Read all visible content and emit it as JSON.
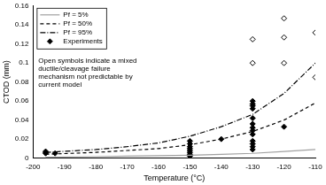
{
  "chart_data": {
    "type": "scatter",
    "x_label": "Temperature (°C)",
    "y_label": "CTOD (mm)",
    "annotation": [
      "Open symbols indicate a mixed",
      "ductile/cleavage failure",
      "mechanism not predictable by",
      "current model"
    ],
    "xlim": [
      -200,
      -110
    ],
    "xticks": [
      -200,
      -190,
      -180,
      -170,
      -160,
      -150,
      -140,
      -130,
      -120,
      -110
    ],
    "ylim": [
      0,
      0.16
    ],
    "yticks": [
      0,
      0.02,
      0.04,
      0.06,
      0.08,
      0.1,
      0.12,
      0.14,
      0.16
    ],
    "grid": false,
    "legend": "top-left",
    "series": [
      {
        "name": "Pf = 5%",
        "color": "#a0a0a0",
        "type": "line",
        "line_style": "solid",
        "marker": "none",
        "x": [
          -196,
          -180,
          -170,
          -160,
          -150,
          -140,
          -130,
          -120,
          -110
        ],
        "values": [
          0.001,
          0.0015,
          0.002,
          0.0025,
          0.003,
          0.004,
          0.005,
          0.007,
          0.009
        ]
      },
      {
        "name": "Pf = 50%",
        "color": "#000000",
        "type": "line",
        "line_style": "dashed",
        "marker": "none",
        "x": [
          -196,
          -180,
          -170,
          -160,
          -150,
          -140,
          -130,
          -120,
          -110
        ],
        "values": [
          0.004,
          0.006,
          0.008,
          0.01,
          0.014,
          0.02,
          0.028,
          0.04,
          0.058
        ]
      },
      {
        "name": "Pf = 95%",
        "color": "#000000",
        "type": "line",
        "line_style": "dashdot",
        "marker": "none",
        "x": [
          -196,
          -180,
          -170,
          -160,
          -150,
          -140,
          -130,
          -120,
          -110
        ],
        "values": [
          0.006,
          0.009,
          0.012,
          0.016,
          0.023,
          0.033,
          0.046,
          0.068,
          0.1
        ]
      },
      {
        "name": "Experiments",
        "color": "#000000",
        "type": "scatter",
        "marker": "diamond",
        "x": [
          -196,
          -196,
          -196,
          -193,
          -150,
          -150,
          -150,
          -150,
          -150,
          -150,
          -150,
          -150,
          -150,
          -140,
          -130,
          -130,
          -130,
          -130,
          -130,
          -130,
          -130,
          -130,
          -130,
          -130,
          -130,
          -130,
          -130,
          -120
        ],
        "values": [
          0.007,
          0.006,
          0.005,
          0.005,
          0.018,
          0.015,
          0.012,
          0.01,
          0.008,
          0.006,
          0.004,
          0.003,
          0.002,
          0.02,
          0.06,
          0.057,
          0.055,
          0.052,
          0.042,
          0.036,
          0.032,
          0.029,
          0.025,
          0.018,
          0.015,
          0.012,
          0.009,
          0.033
        ]
      },
      {
        "color": "#000000",
        "type": "scatter",
        "marker": "open diamond",
        "x": [
          -130,
          -130,
          -120,
          -120,
          -120,
          -110,
          -110
        ],
        "values": [
          0.125,
          0.1,
          0.147,
          0.127,
          0.1,
          0.132,
          0.085
        ]
      }
    ]
  }
}
